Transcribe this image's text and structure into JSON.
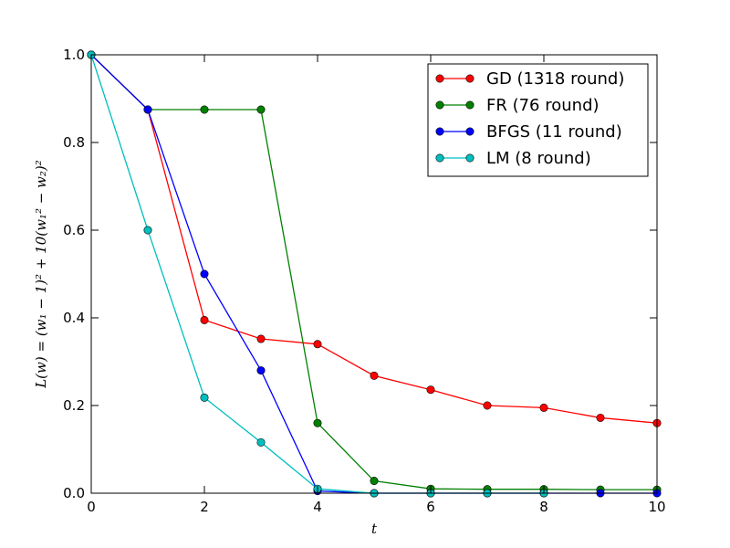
{
  "chart_data": {
    "type": "line",
    "xlabel": "t",
    "ylabel": "L(w) = (w₁ − 1)² + 10(w₁² − w₂)²",
    "xlim": [
      0,
      10
    ],
    "ylim": [
      0,
      1.0
    ],
    "xticks": [
      "0",
      "2",
      "4",
      "6",
      "8",
      "10"
    ],
    "yticks": [
      "0.0",
      "0.2",
      "0.4",
      "0.6",
      "0.8",
      "1.0"
    ],
    "grid": false,
    "legend_position": "top-right",
    "series": [
      {
        "name": "GD (1318 round)",
        "color": "#ff0000",
        "x": [
          0,
          1,
          2,
          3,
          4,
          5,
          6,
          7,
          8,
          9,
          10
        ],
        "y": [
          1.0,
          0.875,
          0.395,
          0.352,
          0.34,
          0.268,
          0.236,
          0.2,
          0.195,
          0.172,
          0.16
        ]
      },
      {
        "name": "FR (76 round)",
        "color": "#008000",
        "x": [
          0,
          1,
          2,
          3,
          4,
          5,
          6,
          7,
          8,
          9,
          10
        ],
        "y": [
          1.0,
          0.875,
          0.875,
          0.875,
          0.16,
          0.028,
          0.01,
          0.009,
          0.009,
          0.008,
          0.008
        ]
      },
      {
        "name": "BFGS (11 round)",
        "color": "#0000ff",
        "x": [
          0,
          1,
          2,
          3,
          4,
          5,
          6,
          7,
          8,
          9,
          10
        ],
        "y": [
          1.0,
          0.875,
          0.5,
          0.28,
          0.005,
          0.0,
          0.0,
          0.0,
          0.0,
          0.0,
          0.0
        ]
      },
      {
        "name": "LM (8 round)",
        "color": "#00bfbf",
        "x": [
          0,
          1,
          2,
          3,
          4,
          5,
          6,
          7,
          8
        ],
        "y": [
          1.0,
          0.6,
          0.218,
          0.116,
          0.01,
          0.0,
          0.0,
          0.0,
          0.0
        ]
      }
    ]
  }
}
